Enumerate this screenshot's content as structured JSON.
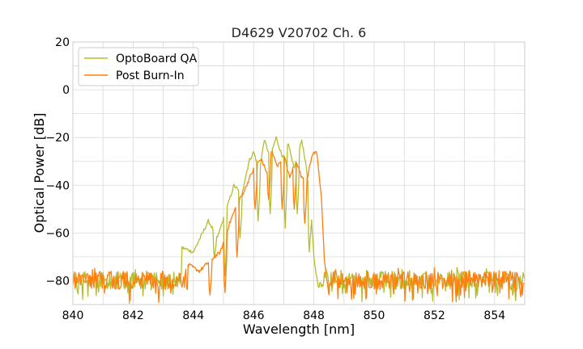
{
  "chart_data": {
    "type": "line",
    "title": "D4629 V20702 Ch. 6",
    "xlabel": "Wavelength [nm]",
    "ylabel": "Optical Power [dB]",
    "xlim": [
      840,
      855
    ],
    "ylim": [
      -90,
      20
    ],
    "x_ticks": [
      840,
      842,
      844,
      846,
      848,
      850,
      852,
      854
    ],
    "y_ticks": [
      -80,
      -60,
      -40,
      -20,
      0,
      20
    ],
    "x_tick_labels": [
      "840",
      "842",
      "844",
      "846",
      "848",
      "850",
      "852",
      "854"
    ],
    "y_tick_labels": [
      "−80",
      "−60",
      "−40",
      "−20",
      "0",
      "20"
    ],
    "grid": true,
    "legend_position": "top-left",
    "series": [
      {
        "name": "OptoBoard QA",
        "color": "#b5bd2e",
        "noise_floor": -80,
        "envelope": [
          [
            843.6,
            -66
          ],
          [
            844.0,
            -68
          ],
          [
            844.5,
            -55
          ],
          [
            844.8,
            -62
          ],
          [
            845.1,
            -50
          ],
          [
            845.35,
            -40
          ],
          [
            845.6,
            -44
          ],
          [
            845.85,
            -30
          ],
          [
            846.0,
            -26
          ],
          [
            846.2,
            -34
          ],
          [
            846.35,
            -21
          ],
          [
            846.55,
            -28
          ],
          [
            846.75,
            -20
          ],
          [
            846.95,
            -28
          ],
          [
            847.15,
            -23
          ],
          [
            847.35,
            -33
          ],
          [
            847.6,
            -21
          ],
          [
            847.75,
            -33
          ],
          [
            847.9,
            -50
          ],
          [
            848.0,
            -70
          ],
          [
            848.15,
            -83
          ]
        ],
        "dips": [
          [
            844.7,
            -70
          ],
          [
            845.05,
            -78
          ],
          [
            845.55,
            -62
          ],
          [
            846.15,
            -55
          ],
          [
            846.55,
            -52
          ],
          [
            847.05,
            -58
          ],
          [
            847.45,
            -52
          ],
          [
            847.85,
            -68
          ]
        ]
      },
      {
        "name": "Post Burn-In",
        "color": "#ff7f0e",
        "noise_floor": -80,
        "envelope": [
          [
            843.8,
            -73
          ],
          [
            844.2,
            -76
          ],
          [
            844.6,
            -71
          ],
          [
            844.9,
            -68
          ],
          [
            845.2,
            -56
          ],
          [
            845.45,
            -48
          ],
          [
            845.7,
            -42
          ],
          [
            845.9,
            -36
          ],
          [
            846.05,
            -32
          ],
          [
            846.25,
            -29
          ],
          [
            846.45,
            -35
          ],
          [
            846.6,
            -26
          ],
          [
            846.8,
            -32
          ],
          [
            847.0,
            -27
          ],
          [
            847.2,
            -37
          ],
          [
            847.4,
            -29
          ],
          [
            847.6,
            -37
          ],
          [
            847.8,
            -36
          ],
          [
            847.95,
            -27
          ],
          [
            848.1,
            -26
          ],
          [
            848.25,
            -45
          ],
          [
            848.35,
            -72
          ],
          [
            848.5,
            -86
          ]
        ],
        "dips": [
          [
            844.55,
            -86
          ],
          [
            845.05,
            -85
          ],
          [
            845.45,
            -70
          ],
          [
            846.05,
            -50
          ],
          [
            846.5,
            -46
          ],
          [
            846.95,
            -50
          ],
          [
            847.35,
            -50
          ],
          [
            847.7,
            -56
          ]
        ]
      }
    ]
  }
}
